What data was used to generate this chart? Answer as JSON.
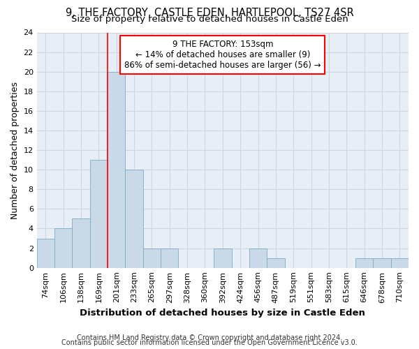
{
  "title_line1": "9, THE FACTORY, CASTLE EDEN, HARTLEPOOL, TS27 4SR",
  "title_line2": "Size of property relative to detached houses in Castle Eden",
  "xlabel": "Distribution of detached houses by size in Castle Eden",
  "ylabel": "Number of detached properties",
  "footnote1": "Contains HM Land Registry data © Crown copyright and database right 2024.",
  "footnote2": "Contains public sector information licensed under the Open Government Licence v3.0.",
  "bin_labels": [
    "74sqm",
    "106sqm",
    "138sqm",
    "169sqm",
    "201sqm",
    "233sqm",
    "265sqm",
    "297sqm",
    "328sqm",
    "360sqm",
    "392sqm",
    "424sqm",
    "456sqm",
    "487sqm",
    "519sqm",
    "551sqm",
    "583sqm",
    "615sqm",
    "646sqm",
    "678sqm",
    "710sqm"
  ],
  "bar_values": [
    3,
    4,
    5,
    11,
    20,
    10,
    2,
    2,
    0,
    0,
    2,
    0,
    2,
    1,
    0,
    0,
    0,
    0,
    1,
    1,
    1
  ],
  "bar_color": "#c9d9e8",
  "bar_edge_color": "#7aaac8",
  "grid_color": "#ccd5e0",
  "annotation_text": "9 THE FACTORY: 153sqm\n← 14% of detached houses are smaller (9)\n86% of semi-detached houses are larger (56) →",
  "annotation_box_color": "white",
  "annotation_box_edge_color": "red",
  "red_line_x": 3.5,
  "ylim": [
    0,
    24
  ],
  "yticks": [
    0,
    2,
    4,
    6,
    8,
    10,
    12,
    14,
    16,
    18,
    20,
    22,
    24
  ],
  "ax_bg_color": "#e8eef5",
  "background_color": "white",
  "title_fontsize": 10.5,
  "subtitle_fontsize": 9.5,
  "tick_fontsize": 8,
  "ylabel_fontsize": 9,
  "xlabel_fontsize": 9.5,
  "footnote_fontsize": 7,
  "annotation_fontsize": 8.5
}
